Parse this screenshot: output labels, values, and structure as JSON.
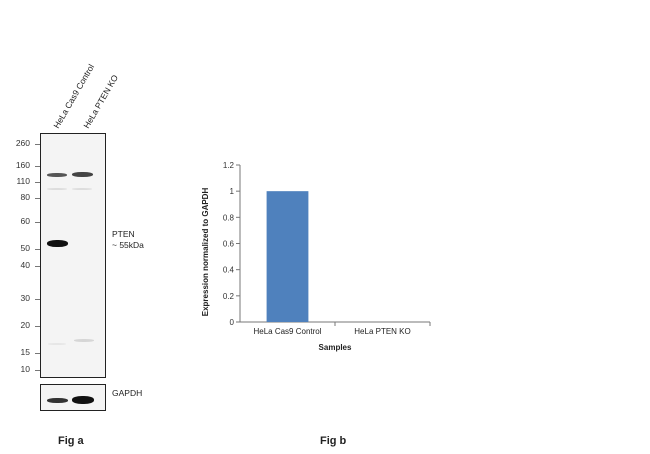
{
  "fig_a": {
    "lanes": [
      "HeLa Cas9 Control",
      "HeLa  PTEN KO"
    ],
    "mw_markers": [
      "260",
      "160",
      "110",
      "80",
      "60",
      "50",
      "40",
      "30",
      "20",
      "15",
      "10"
    ],
    "band_label_line1": "PTEN",
    "band_label_line2": "~ 55kDa",
    "loading_control": "GAPDH",
    "caption": "Fig a"
  },
  "fig_b": {
    "caption": "Fig b"
  },
  "chart_data": {
    "type": "bar",
    "categories": [
      "HeLa Cas9 Control",
      "HeLa PTEN KO"
    ],
    "values": [
      1,
      0
    ],
    "xlabel": "Samples",
    "ylabel": "Expression  normalized to GAPDH",
    "ylim": [
      0,
      1.2
    ],
    "yticks": [
      "0",
      "0.2",
      "0.4",
      "0.6",
      "0.8",
      "1",
      "1.2"
    ],
    "bar_color": "#4f81bd",
    "grid": false,
    "legend": "none"
  }
}
